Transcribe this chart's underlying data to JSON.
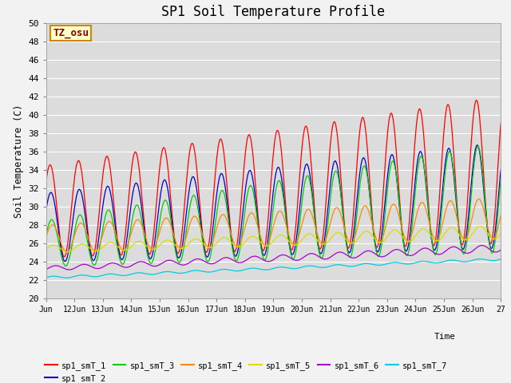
{
  "title": "SP1 Soil Temperature Profile",
  "xlabel": "Time",
  "ylabel": "Soil Temperature (C)",
  "tz_label": "TZ_osu",
  "ylim": [
    20,
    50
  ],
  "series_colors": {
    "sp1_smT_1": "#ff0000",
    "sp1_smT_2": "#0000cc",
    "sp1_smT_3": "#00cc00",
    "sp1_smT_4": "#ff8800",
    "sp1_smT_5": "#dddd00",
    "sp1_smT_6": "#aa00cc",
    "sp1_smT_7": "#00ccdd"
  },
  "fig_bg": "#f2f2f2",
  "plot_bg": "#dcdcdc",
  "grid_color": "#ffffff"
}
